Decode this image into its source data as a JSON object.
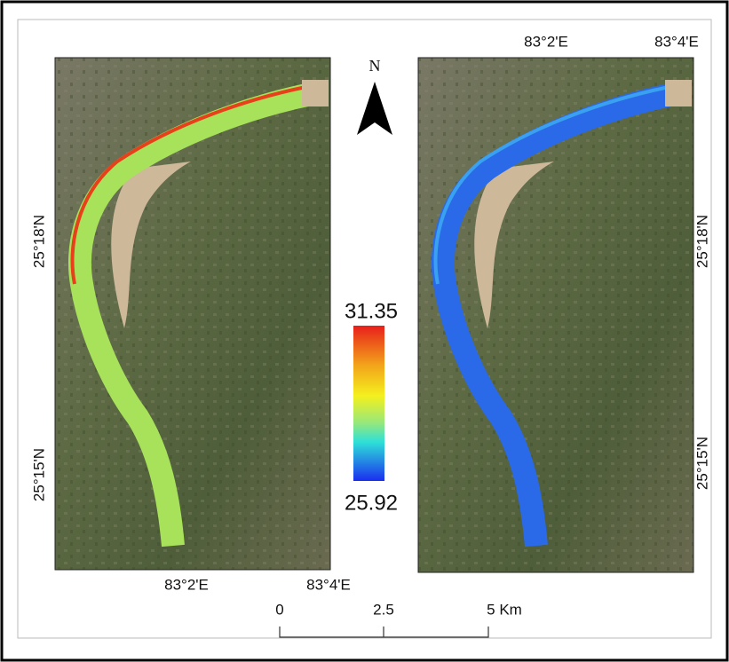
{
  "left_map": {
    "x_labels": [
      "83°2'E",
      "83°4'E"
    ],
    "y_labels": [
      "25°18'N",
      "25°15'N"
    ]
  },
  "right_map": {
    "x_labels": [
      "83°2'E",
      "83°4'E"
    ],
    "y_labels": [
      "25°18'N",
      "25°15'N"
    ]
  },
  "north_arrow": "N",
  "legend": {
    "max": "31.35",
    "min": "25.92"
  },
  "scale_bar": {
    "labels": [
      "0",
      "2.5",
      "5 Km"
    ]
  }
}
